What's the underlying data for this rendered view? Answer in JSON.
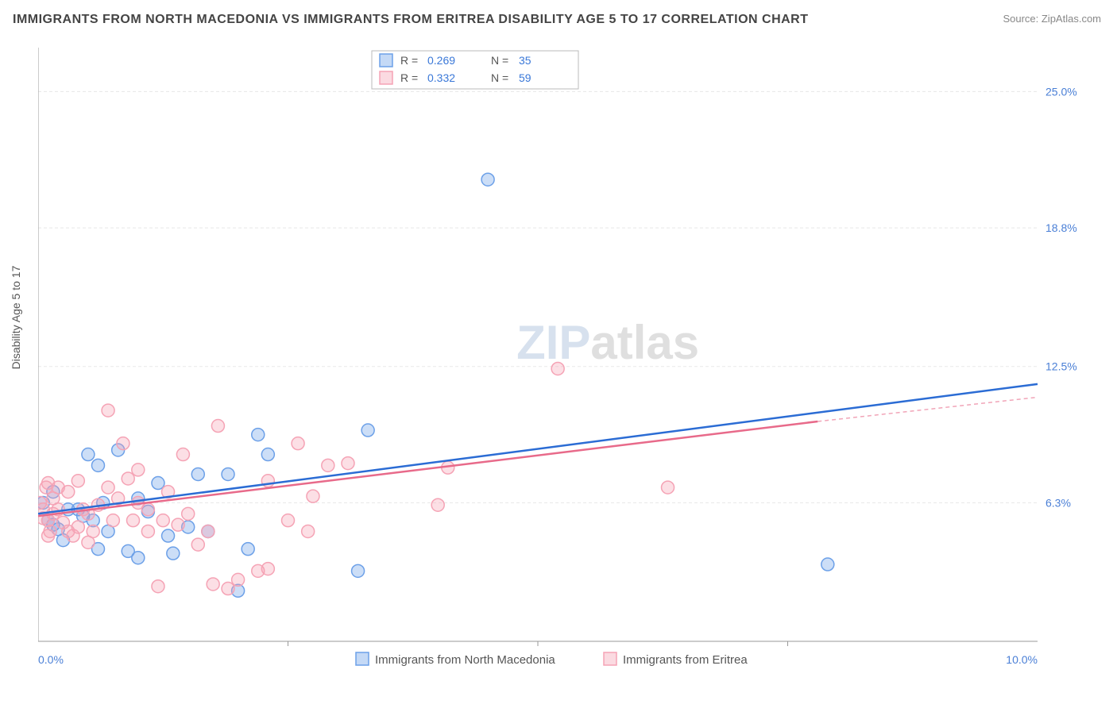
{
  "title": "IMMIGRANTS FROM NORTH MACEDONIA VS IMMIGRANTS FROM ERITREA DISABILITY AGE 5 TO 17 CORRELATION CHART",
  "source": "Source: ZipAtlas.com",
  "y_axis_label": "Disability Age 5 to 17",
  "watermark": {
    "text_zip": "ZIP",
    "text_atlas": "atlas",
    "color_zip": "#b0c4de",
    "color_atlas": "#c0c0c0",
    "fontsize": 60
  },
  "chart": {
    "type": "scatter",
    "xlim": [
      0,
      10
    ],
    "ylim": [
      0,
      27
    ],
    "x_ticks": [
      0,
      10
    ],
    "x_tick_labels": [
      "0.0%",
      "10.0%"
    ],
    "y_ticks": [
      6.3,
      12.5,
      18.8,
      25.0
    ],
    "y_tick_labels": [
      "6.3%",
      "12.5%",
      "18.8%",
      "25.0%"
    ],
    "x_minor_ticks": [
      2.5,
      5.0,
      7.5
    ],
    "axis_color": "#999999",
    "grid_color": "#e8e8e8",
    "tick_label_color": "#4a7fd6",
    "tick_fontsize": 14,
    "background_color": "#ffffff",
    "marker_radius": 8,
    "marker_stroke_width": 1.5,
    "marker_fill_opacity": 0.35,
    "line_width": 2.5,
    "series": [
      {
        "name": "Immigrants from North Macedonia",
        "color": "#6ca0e8",
        "line_color": "#2b6cd4",
        "r_value": "0.269",
        "n_value": "35",
        "regression": {
          "x1": 0,
          "y1": 5.8,
          "x2": 10,
          "y2": 11.7
        },
        "points": [
          [
            0.05,
            6.3
          ],
          [
            0.1,
            5.5
          ],
          [
            0.15,
            5.3
          ],
          [
            0.2,
            5.1
          ],
          [
            0.4,
            6.0
          ],
          [
            0.5,
            8.5
          ],
          [
            0.55,
            5.5
          ],
          [
            0.6,
            4.2
          ],
          [
            0.7,
            5.0
          ],
          [
            0.8,
            8.7
          ],
          [
            0.9,
            4.1
          ],
          [
            1.0,
            3.8
          ],
          [
            1.1,
            5.9
          ],
          [
            1.2,
            7.2
          ],
          [
            1.3,
            4.8
          ],
          [
            1.35,
            4.0
          ],
          [
            1.6,
            7.6
          ],
          [
            1.7,
            5.0
          ],
          [
            1.9,
            7.6
          ],
          [
            2.0,
            2.3
          ],
          [
            2.1,
            4.2
          ],
          [
            2.2,
            9.4
          ],
          [
            2.3,
            8.5
          ],
          [
            3.2,
            3.2
          ],
          [
            3.3,
            9.6
          ],
          [
            4.5,
            21.0
          ],
          [
            7.9,
            3.5
          ],
          [
            0.3,
            6.0
          ],
          [
            1.0,
            6.5
          ],
          [
            1.5,
            5.2
          ],
          [
            0.6,
            8.0
          ],
          [
            0.25,
            4.6
          ],
          [
            0.15,
            6.8
          ],
          [
            0.45,
            5.7
          ],
          [
            0.65,
            6.3
          ]
        ]
      },
      {
        "name": "Immigrants from Eritrea",
        "color": "#f5a3b5",
        "line_color": "#e86a8a",
        "r_value": "0.332",
        "n_value": "59",
        "regression": {
          "x1": 0,
          "y1": 5.7,
          "x2": 7.8,
          "y2": 10.0,
          "dashed_to_x": 10,
          "dashed_to_y": 11.1
        },
        "points": [
          [
            0.02,
            6.3
          ],
          [
            0.05,
            6.0
          ],
          [
            0.05,
            5.6
          ],
          [
            0.08,
            7.0
          ],
          [
            0.1,
            5.5
          ],
          [
            0.1,
            7.2
          ],
          [
            0.12,
            5.0
          ],
          [
            0.15,
            6.5
          ],
          [
            0.15,
            5.8
          ],
          [
            0.2,
            6.0
          ],
          [
            0.2,
            7.0
          ],
          [
            0.25,
            5.4
          ],
          [
            0.3,
            5.0
          ],
          [
            0.3,
            6.8
          ],
          [
            0.35,
            4.8
          ],
          [
            0.4,
            7.3
          ],
          [
            0.4,
            5.2
          ],
          [
            0.45,
            6.0
          ],
          [
            0.5,
            5.8
          ],
          [
            0.5,
            4.5
          ],
          [
            0.55,
            5.0
          ],
          [
            0.6,
            6.2
          ],
          [
            0.7,
            10.5
          ],
          [
            0.7,
            7.0
          ],
          [
            0.75,
            5.5
          ],
          [
            0.8,
            6.5
          ],
          [
            0.85,
            9.0
          ],
          [
            0.9,
            7.4
          ],
          [
            0.95,
            5.5
          ],
          [
            1.0,
            6.3
          ],
          [
            1.0,
            7.8
          ],
          [
            1.1,
            6.0
          ],
          [
            1.1,
            5.0
          ],
          [
            1.2,
            2.5
          ],
          [
            1.25,
            5.5
          ],
          [
            1.3,
            6.8
          ],
          [
            1.4,
            5.3
          ],
          [
            1.45,
            8.5
          ],
          [
            1.5,
            5.8
          ],
          [
            1.6,
            4.4
          ],
          [
            1.7,
            5.0
          ],
          [
            1.75,
            2.6
          ],
          [
            1.8,
            9.8
          ],
          [
            1.9,
            2.4
          ],
          [
            2.0,
            2.8
          ],
          [
            2.2,
            3.2
          ],
          [
            2.3,
            3.3
          ],
          [
            2.3,
            7.3
          ],
          [
            2.5,
            5.5
          ],
          [
            2.6,
            9.0
          ],
          [
            2.7,
            5.0
          ],
          [
            2.75,
            6.6
          ],
          [
            2.9,
            8.0
          ],
          [
            3.1,
            8.1
          ],
          [
            4.0,
            6.2
          ],
          [
            4.1,
            7.9
          ],
          [
            5.2,
            12.4
          ],
          [
            6.3,
            7.0
          ],
          [
            0.1,
            4.8
          ]
        ]
      }
    ],
    "stats_legend": {
      "box_border": "#bbbbbb",
      "label_color": "#555555",
      "value_color": "#3a78d8",
      "fontsize": 14
    },
    "bottom_legend": {
      "fontsize": 15,
      "text_color": "#555555"
    }
  }
}
